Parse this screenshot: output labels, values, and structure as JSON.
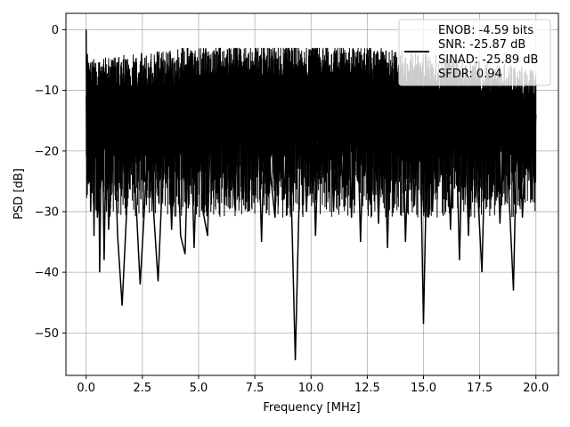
{
  "chart_data": {
    "type": "line",
    "title": "",
    "xlabel": "Frequency [MHz]",
    "ylabel": "PSD [dB]",
    "xlim": [
      -0.9,
      21.0
    ],
    "ylim": [
      -57.0,
      2.7
    ],
    "xticks": [
      0.0,
      2.5,
      5.0,
      7.5,
      10.0,
      12.5,
      15.0,
      17.5,
      20.0
    ],
    "xtick_labels": [
      "0.0",
      "2.5",
      "5.0",
      "7.5",
      "10.0",
      "12.5",
      "15.0",
      "17.5",
      "20.0"
    ],
    "yticks": [
      0,
      -10,
      -20,
      -30,
      -40,
      -50
    ],
    "ytick_labels": [
      "0",
      "−10",
      "−20",
      "−30",
      "−40",
      "−50"
    ],
    "grid": true,
    "legend_position": "upper-right",
    "legend_lines": [
      "ENOB: -4.59 bits",
      "SNR: -25.87 dB",
      "SINAD: -25.89 dB",
      "SFDR: 0.94"
    ],
    "series_color": "#000000",
    "series": [
      {
        "x": [
          0.0,
          0.02,
          0.05,
          0.1,
          0.15,
          0.2,
          0.3,
          0.35,
          0.4,
          0.5,
          0.55,
          0.6,
          0.7,
          0.8,
          0.9,
          1.0,
          1.2,
          1.4,
          1.6,
          1.8,
          2.0,
          2.2,
          2.4,
          2.6,
          2.8,
          3.0,
          3.2,
          3.4,
          3.6,
          3.8,
          4.0,
          4.2,
          4.4,
          4.6,
          4.8,
          5.0,
          5.2,
          5.4,
          5.6,
          5.8,
          6.0,
          6.2,
          6.4,
          6.6,
          6.8,
          7.0,
          7.2,
          7.4,
          7.6,
          7.8,
          8.0,
          8.2,
          8.4,
          8.6,
          8.8,
          9.0,
          9.3,
          9.6,
          9.8,
          10.0,
          10.2,
          10.4,
          10.6,
          10.8,
          11.0,
          11.2,
          11.4,
          11.6,
          11.8,
          12.0,
          12.2,
          12.4,
          12.6,
          12.8,
          13.0,
          13.2,
          13.4,
          13.6,
          13.8,
          14.0,
          14.2,
          14.4,
          14.6,
          14.8,
          15.0,
          15.2,
          15.4,
          15.6,
          15.8,
          16.0,
          16.2,
          16.4,
          16.6,
          16.8,
          17.0,
          17.2,
          17.4,
          17.6,
          17.8,
          18.0,
          18.2,
          18.4,
          18.6,
          18.8,
          19.0,
          19.2,
          19.4,
          19.6,
          19.8,
          20.0
        ],
        "y": [
          0,
          -14,
          -4,
          -25,
          -9,
          -30,
          -12,
          -34,
          -9,
          -31,
          -14,
          -40,
          -12,
          -38,
          -15,
          -33,
          -11,
          -34,
          -45.5,
          -30,
          -10,
          -27,
          -42,
          -29,
          -13,
          -30,
          -41.5,
          -24,
          -9,
          -33,
          -11,
          -34,
          -37,
          -8,
          -36,
          -12,
          -30,
          -34,
          -7,
          -27,
          -10,
          -22,
          -6,
          -29,
          -9,
          -27,
          -5,
          -25,
          -8,
          -35,
          -6,
          -24,
          -31,
          -8,
          -28,
          -9,
          -54.5,
          -8,
          -30,
          -5,
          -34,
          -9,
          -25,
          -6,
          -30,
          -8,
          -26,
          -7,
          -31,
          -6,
          -35,
          -9,
          -28,
          -6,
          -32,
          -8,
          -36,
          -7,
          -25,
          -6,
          -35,
          -10,
          -29,
          -7,
          -48.5,
          -12,
          -30,
          -9,
          -24,
          -5,
          -33,
          -8,
          -38,
          -9,
          -34,
          -6,
          -26,
          -40,
          -10,
          -28,
          -8,
          -32,
          -9,
          -27,
          -43,
          -8,
          -31,
          -12,
          -28,
          -14
        ]
      }
    ]
  }
}
